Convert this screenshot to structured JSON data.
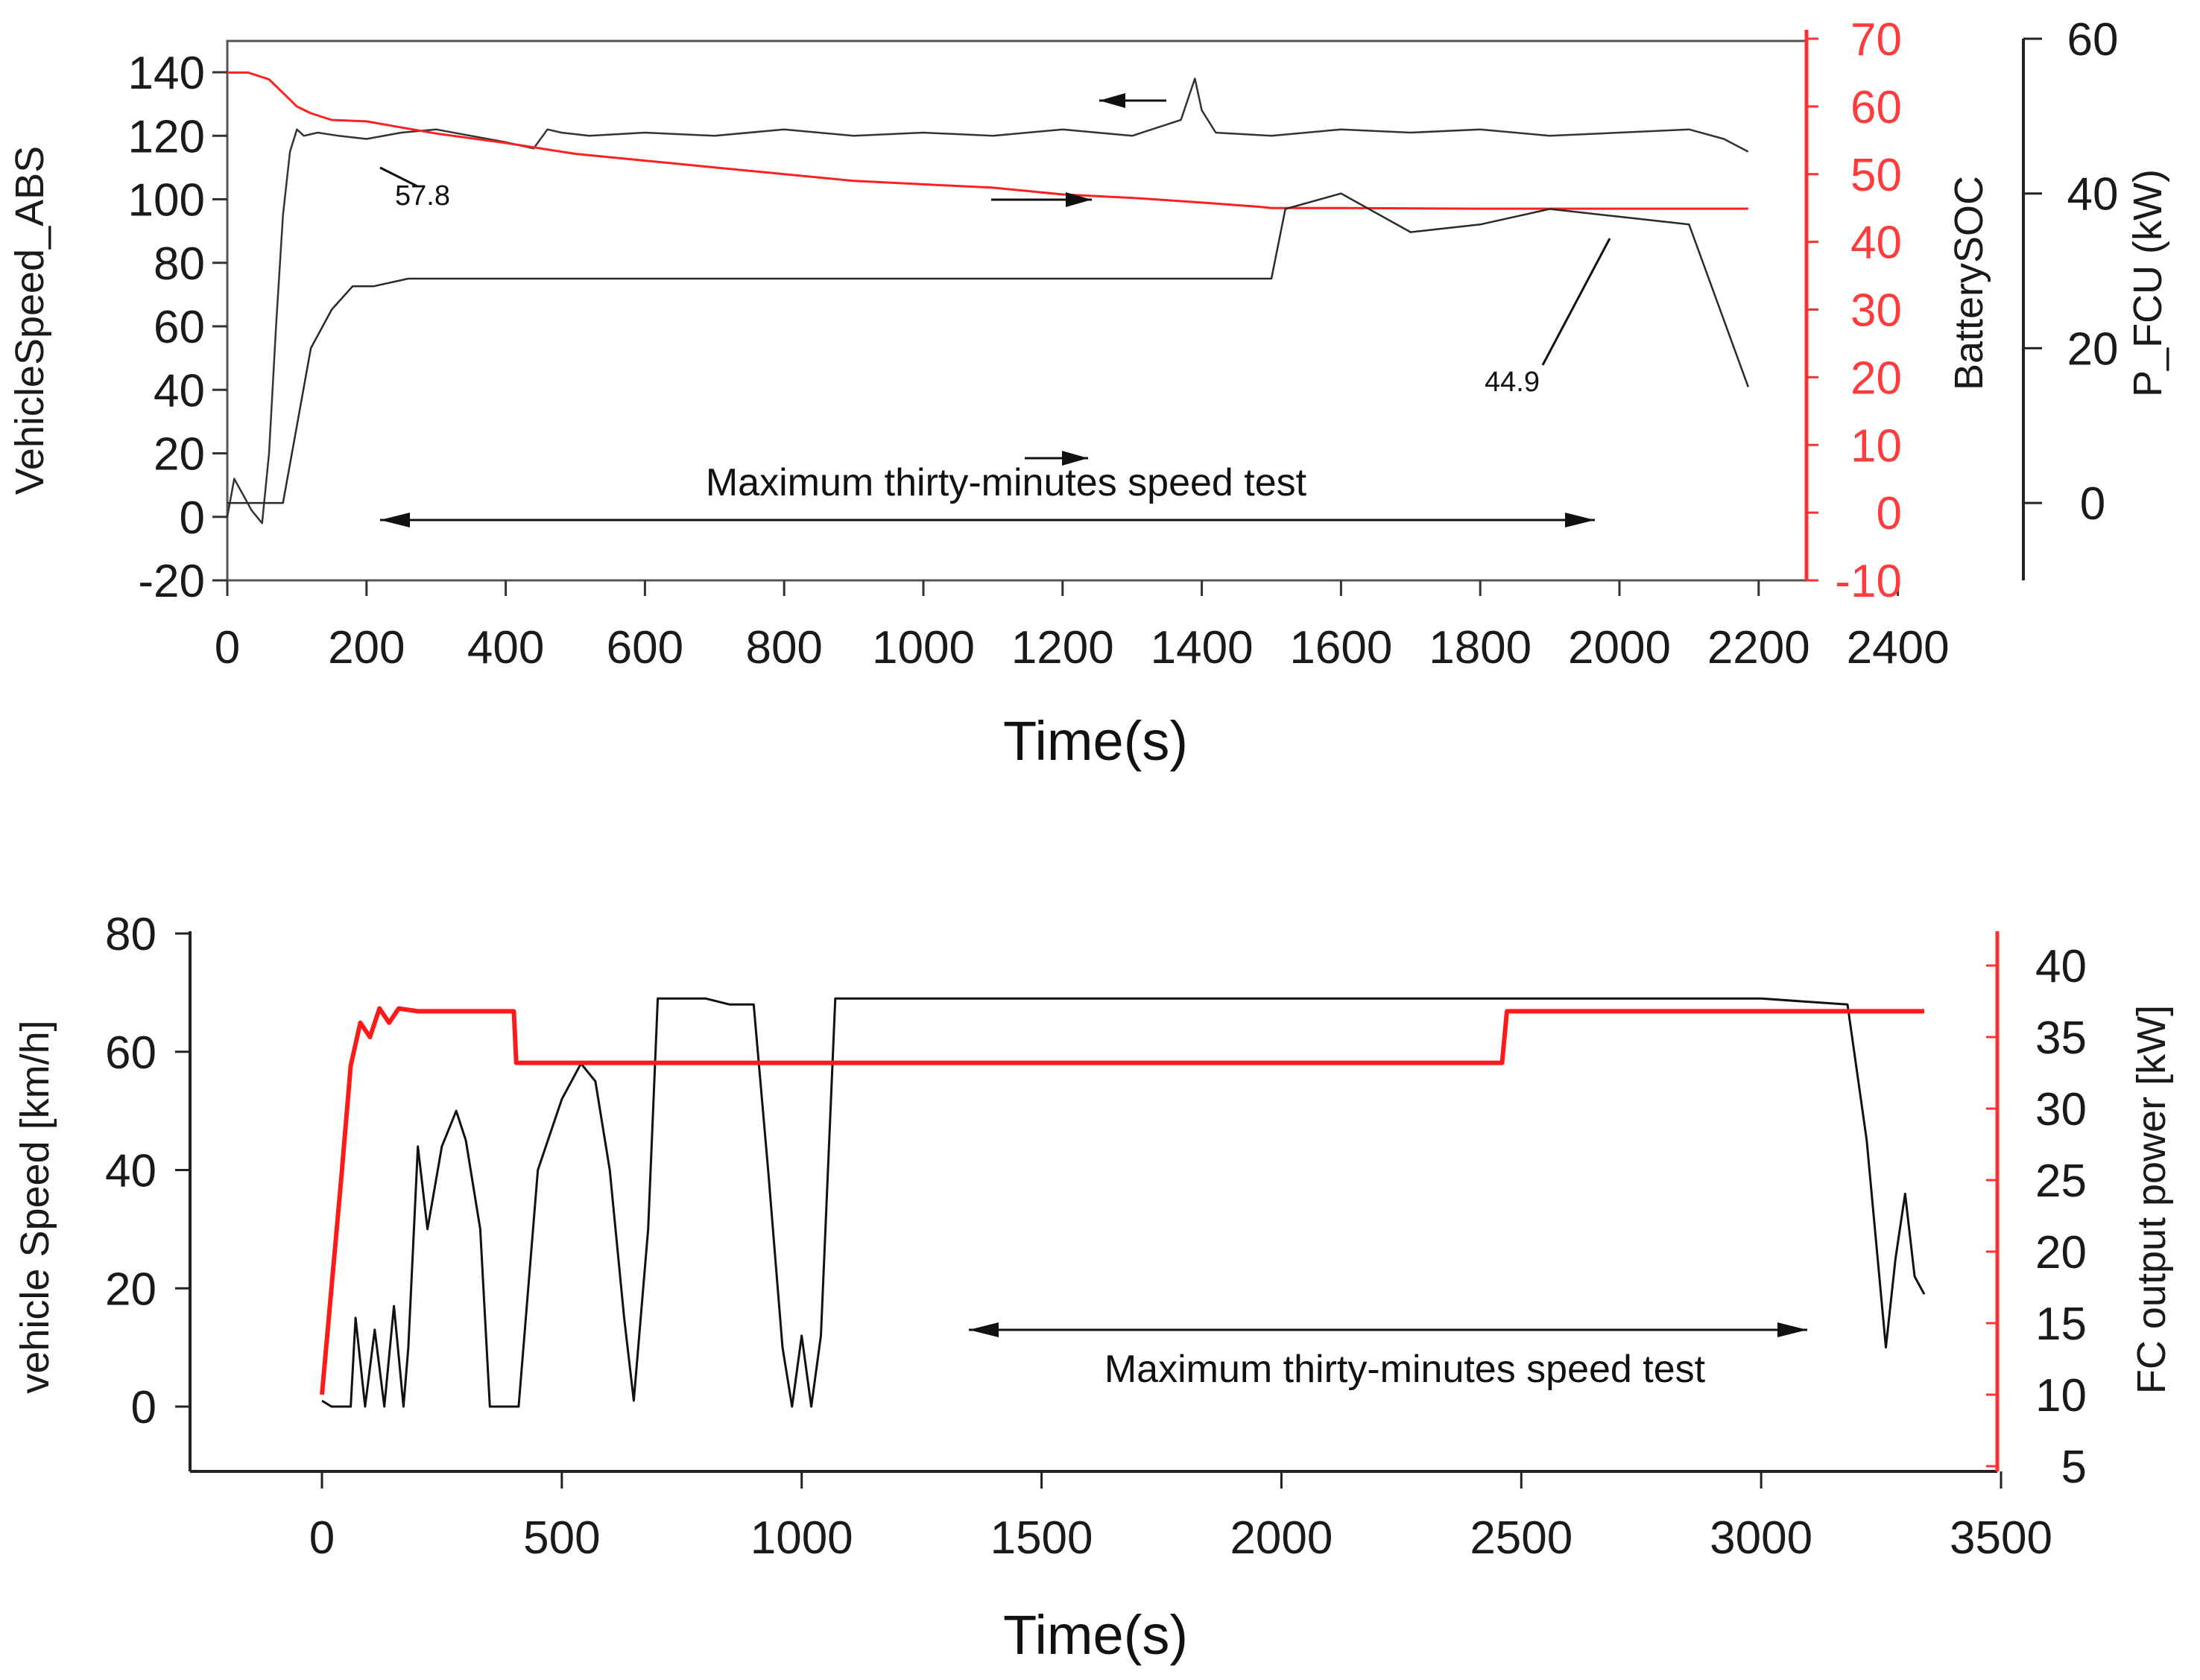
{
  "chart_data": [
    {
      "type": "line",
      "xlabel": "Time(s)",
      "xlim": [
        0,
        2500
      ],
      "xticks": [
        0,
        200,
        400,
        600,
        800,
        1000,
        1200,
        1400,
        1600,
        1800,
        2000,
        2200,
        2400
      ],
      "axes": {
        "left": {
          "label": "VehicleSpeed_ABS",
          "ylim": [
            -20,
            150
          ],
          "ticks": [
            -20,
            0,
            20,
            40,
            60,
            80,
            100,
            120,
            140
          ],
          "color": "#333333"
        },
        "right1": {
          "label": "BatterySOC",
          "ylim": [
            -10,
            75
          ],
          "ticks": [
            -10,
            0,
            10,
            20,
            30,
            40,
            50,
            60,
            70
          ],
          "color": "#ff2020"
        },
        "right2": {
          "label": "P_FCU (kW)",
          "ylim": [
            -10,
            60
          ],
          "ticks": [
            0,
            20,
            40,
            60
          ],
          "color": "#222222"
        }
      },
      "series": [
        {
          "name": "VehicleSpeed_ABS",
          "axis": "left",
          "color": "#333333",
          "x": [
            0,
            10,
            20,
            35,
            50,
            60,
            70,
            80,
            90,
            100,
            110,
            130,
            160,
            200,
            250,
            300,
            350,
            400,
            440,
            460,
            480,
            520,
            600,
            700,
            800,
            900,
            1000,
            1100,
            1200,
            1300,
            1370,
            1390,
            1400,
            1420,
            1500,
            1600,
            1700,
            1800,
            1900,
            2000,
            2100,
            2150,
            2185
          ],
          "y": [
            0,
            12,
            8,
            2,
            -2,
            20,
            60,
            95,
            115,
            122,
            120,
            121,
            120,
            119,
            121,
            122,
            120,
            118,
            116,
            122,
            121,
            120,
            121,
            120,
            122,
            120,
            121,
            120,
            122,
            120,
            125,
            138,
            128,
            121,
            120,
            122,
            121,
            122,
            120,
            121,
            122,
            119,
            115
          ]
        },
        {
          "name": "BatterySOC",
          "axis": "right1",
          "color": "#ff2020",
          "x": [
            0,
            30,
            60,
            80,
            100,
            120,
            150,
            200,
            300,
            400,
            500,
            600,
            700,
            800,
            900,
            1000,
            1100,
            1200,
            1300,
            1400,
            1480,
            1500,
            1600,
            1800,
            2000,
            2185
          ],
          "y": [
            65,
            65,
            64,
            62,
            60,
            59,
            58,
            57.8,
            56,
            54.6,
            53,
            52,
            51,
            50,
            49,
            48.5,
            48,
            47,
            46.5,
            45.8,
            45.2,
            45,
            45,
            44.9,
            44.9,
            44.9
          ]
        },
        {
          "name": "P_FCU",
          "axis": "right2",
          "color": "#2a2a2a",
          "x": [
            0,
            20,
            50,
            60,
            80,
            100,
            120,
            150,
            180,
            210,
            260,
            300,
            400,
            600,
            800,
            1000,
            1200,
            1400,
            1500,
            1520,
            1600,
            1700,
            1800,
            1900,
            2000,
            2100,
            2185
          ],
          "y": [
            0,
            0,
            0,
            0,
            0,
            10,
            20,
            25,
            28,
            28,
            29,
            29,
            29,
            29,
            29,
            29,
            29,
            29,
            29,
            38,
            40,
            35,
            36,
            38,
            37,
            36,
            15
          ]
        }
      ],
      "annotations": [
        {
          "text": "57.8",
          "x": 200,
          "series": "BatterySOC"
        },
        {
          "text": "44.9",
          "x": 1850,
          "series": "BatterySOC"
        },
        {
          "text": "Maximum thirty-minutes speed test",
          "from": 220,
          "to": 1970
        }
      ]
    },
    {
      "type": "line",
      "xlabel": "Time(s)",
      "xlim": [
        -250,
        3500
      ],
      "xticks": [
        0,
        500,
        1000,
        1500,
        2000,
        2500,
        3000,
        3500
      ],
      "axes": {
        "left": {
          "label": "vehicle Speed [km/h]",
          "ylim": [
            -10,
            80
          ],
          "ticks": [
            0,
            20,
            40,
            60,
            80
          ],
          "color": "#111111"
        },
        "right": {
          "label": "FC output power [kW]",
          "ylim": [
            5,
            42
          ],
          "ticks": [
            5,
            10,
            15,
            20,
            25,
            30,
            35,
            40
          ],
          "color": "#ff2020"
        }
      },
      "series": [
        {
          "name": "vehicle Speed",
          "axis": "left",
          "color": "#111111",
          "x": [
            0,
            20,
            60,
            70,
            90,
            110,
            130,
            150,
            170,
            180,
            200,
            220,
            250,
            280,
            300,
            330,
            350,
            380,
            410,
            450,
            500,
            540,
            570,
            600,
            630,
            650,
            680,
            700,
            750,
            800,
            850,
            900,
            930,
            960,
            980,
            1000,
            1020,
            1040,
            1070,
            1100,
            1200,
            1500,
            2000,
            2500,
            3000,
            3180,
            3220,
            3260,
            3280,
            3300,
            3320,
            3340
          ],
          "y": [
            1,
            0,
            0,
            15,
            0,
            13,
            0,
            17,
            0,
            10,
            44,
            30,
            44,
            50,
            45,
            30,
            0,
            0,
            0,
            40,
            52,
            58,
            55,
            40,
            15,
            1,
            30,
            69,
            69,
            69,
            68,
            68,
            40,
            10,
            0,
            12,
            0,
            12,
            69,
            69,
            69,
            69,
            69,
            69,
            69,
            68,
            45,
            10,
            25,
            36,
            22,
            19
          ]
        },
        {
          "name": "FC output power",
          "axis": "right",
          "color": "#ff1a1a",
          "x": [
            0,
            40,
            60,
            80,
            100,
            120,
            140,
            160,
            200,
            300,
            400,
            405,
            600,
            1000,
            1500,
            2000,
            2460,
            2470,
            2800,
            3000,
            3200,
            3340
          ],
          "y": [
            10,
            25,
            33,
            36,
            35,
            37,
            36,
            37,
            36.8,
            36.8,
            36.8,
            33.2,
            33.2,
            33.2,
            33.2,
            33.2,
            33.2,
            36.8,
            36.8,
            36.8,
            36.8,
            36.8
          ]
        }
      ],
      "annotations": [
        {
          "text": "Maximum thirty-minutes speed test",
          "from": 1360,
          "to": 3170
        }
      ]
    }
  ]
}
